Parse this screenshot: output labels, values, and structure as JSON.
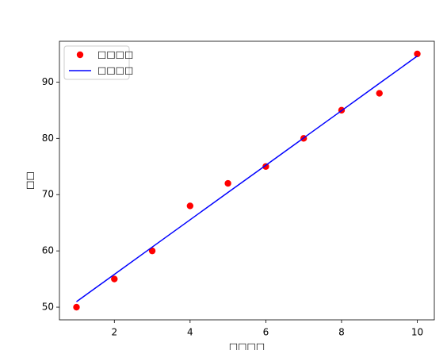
{
  "chart_data": {
    "type": "scatter",
    "x_label": "□□□□",
    "y_label": "□□",
    "x": [
      1,
      2,
      3,
      4,
      5,
      6,
      7,
      8,
      9,
      10
    ],
    "series": [
      {
        "name": "□□□□",
        "type": "scatter",
        "color": "#ff0000",
        "values": [
          50,
          55,
          60,
          68,
          72,
          75,
          80,
          85,
          88,
          95
        ]
      },
      {
        "name": "□□□□",
        "type": "line",
        "color": "#0000ff",
        "values": [
          50.98,
          55.83,
          60.68,
          65.53,
          70.38,
          75.22,
          80.07,
          84.92,
          89.77,
          94.62
        ]
      }
    ],
    "xlim": [
      0.55,
      10.45
    ],
    "xticks": [
      2,
      4,
      6,
      8,
      10
    ],
    "ylim": [
      47.75,
      97.25
    ],
    "yticks": [
      50,
      60,
      70,
      80,
      90
    ],
    "legend": "upper left",
    "grid": false
  }
}
